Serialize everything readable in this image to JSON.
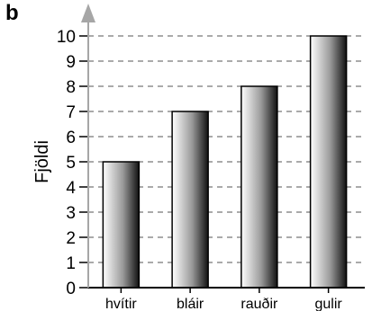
{
  "panel_label": "b",
  "chart_data": {
    "type": "bar",
    "title": "",
    "xlabel": "",
    "ylabel": "Fjöldi",
    "categories": [
      "hvítir",
      "bláir",
      "rauðir",
      "gulir"
    ],
    "values": [
      5,
      7,
      8,
      10
    ],
    "ylim": [
      0,
      10
    ],
    "yticks": [
      "0",
      "1",
      "2",
      "3",
      "4",
      "5",
      "6",
      "7",
      "8",
      "9",
      "10"
    ],
    "grid": "horizontal dashed",
    "bar_fill": "gradient light-to-dark",
    "colors": {
      "axis": "#000000",
      "arrow": "#a6a6a6",
      "grid": "#555555",
      "bar_light": "#ffffff",
      "bar_mid": "#9a9a9a",
      "bar_dark": "#111111"
    }
  }
}
